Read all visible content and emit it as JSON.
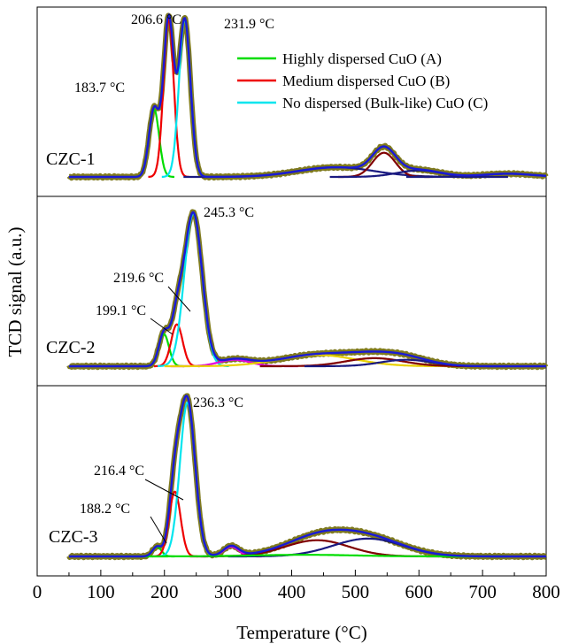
{
  "chart_data": {
    "type": "line",
    "xlabel": "Temperature (°C)",
    "ylabel": "TCD signal (a.u.)",
    "xlim": [
      0,
      800
    ],
    "x_ticks": [
      0,
      100,
      200,
      300,
      400,
      500,
      600,
      700,
      800
    ],
    "x_tick_labels": [
      "0",
      "100",
      "200",
      "300",
      "400",
      "500",
      "600",
      "700",
      "800"
    ],
    "legend": {
      "placement": "top-right of first panel",
      "entries": [
        {
          "label": "Highly dispersed CuO (A)",
          "color": "#00dd00"
        },
        {
          "label": "Medium dispersed CuO (B)",
          "color": "#ee0000"
        },
        {
          "label": "No dispersed (Bulk-like) CuO (C)",
          "color": "#00e5ee"
        }
      ]
    },
    "colors": {
      "experimental": "#7f7a1e",
      "fit": "#1a1ad6",
      "highly": "#00dd00",
      "medium": "#ee0000",
      "bulk": "#00e5ee",
      "extra_magenta": "#e000e0",
      "extra_yellow": "#e8d000",
      "extra_navy": "#1a1a80",
      "extra_darkred": "#800000"
    },
    "panels": [
      {
        "sample": "CZC-1",
        "y_max": 1.0,
        "peaks_labels": [
          {
            "text": "206.6 °C",
            "x": 206.6
          },
          {
            "text": "231.9 °C",
            "x": 231.9
          },
          {
            "text": "183.7 °C",
            "x": 183.7
          }
        ],
        "components": [
          {
            "name": "Highly dispersed CuO (A)",
            "center": 183.7,
            "sigma": 8,
            "height": 0.42,
            "color": "highly"
          },
          {
            "name": "Medium dispersed CuO (B)",
            "center": 206.6,
            "sigma": 8,
            "height": 0.98,
            "color": "medium"
          },
          {
            "name": "No dispersed (Bulk-like) CuO (C)",
            "center": 231.9,
            "sigma": 9,
            "height": 0.98,
            "color": "bulk"
          },
          {
            "name": "",
            "center": 470,
            "sigma": 60,
            "height": 0.06,
            "color": "extra_navy"
          },
          {
            "name": "",
            "center": 545,
            "sigma": 18,
            "height": 0.15,
            "color": "extra_darkred"
          },
          {
            "name": "",
            "center": 600,
            "sigma": 35,
            "height": 0.04,
            "color": "extra_navy"
          },
          {
            "name": "",
            "center": 740,
            "sigma": 40,
            "height": 0.02,
            "color": "extra_navy"
          }
        ]
      },
      {
        "sample": "CZC-2",
        "y_max": 1.0,
        "peaks_labels": [
          {
            "text": "245.3 °C",
            "x": 245.3
          },
          {
            "text": "219.6 °C",
            "x": 219.6
          },
          {
            "text": "199.1 °C",
            "x": 199.1
          }
        ],
        "components": [
          {
            "name": "Highly dispersed CuO (A)",
            "center": 199.1,
            "sigma": 8,
            "height": 0.2,
            "color": "highly"
          },
          {
            "name": "Medium dispersed CuO (B)",
            "center": 219.6,
            "sigma": 9,
            "height": 0.26,
            "color": "medium"
          },
          {
            "name": "No dispersed (Bulk-like) CuO (C)",
            "center": 245.3,
            "sigma": 14,
            "height": 0.95,
            "color": "bulk"
          },
          {
            "name": "",
            "center": 310,
            "sigma": 25,
            "height": 0.04,
            "color": "extra_magenta"
          },
          {
            "name": "",
            "center": 440,
            "sigma": 60,
            "height": 0.07,
            "color": "extra_yellow"
          },
          {
            "name": "",
            "center": 530,
            "sigma": 45,
            "height": 0.05,
            "color": "extra_darkred"
          },
          {
            "name": "",
            "center": 580,
            "sigma": 40,
            "height": 0.04,
            "color": "extra_navy"
          }
        ]
      },
      {
        "sample": "CZC-3",
        "y_max": 1.0,
        "peaks_labels": [
          {
            "text": "236.3 °C",
            "x": 236.3
          },
          {
            "text": "216.4 °C",
            "x": 216.4
          },
          {
            "text": "188.2 °C",
            "x": 188.2
          }
        ],
        "components": [
          {
            "name": "Highly dispersed CuO (A)",
            "center": 188.2,
            "sigma": 7,
            "height": 0.06,
            "color": "highly"
          },
          {
            "name": "Medium dispersed CuO (B)",
            "center": 216.4,
            "sigma": 9,
            "height": 0.4,
            "color": "medium"
          },
          {
            "name": "No dispersed (Bulk-like) CuO (C)",
            "center": 236.3,
            "sigma": 12,
            "height": 0.95,
            "color": "bulk"
          },
          {
            "name": "",
            "center": 305,
            "sigma": 12,
            "height": 0.06,
            "color": "extra_magenta"
          },
          {
            "name": "",
            "center": 440,
            "sigma": 50,
            "height": 0.1,
            "color": "extra_darkred"
          },
          {
            "name": "",
            "center": 520,
            "sigma": 55,
            "height": 0.11,
            "color": "extra_navy"
          },
          {
            "name": "",
            "center": 420,
            "sigma": 80,
            "height": 0.01,
            "color": "highly"
          }
        ]
      }
    ]
  }
}
